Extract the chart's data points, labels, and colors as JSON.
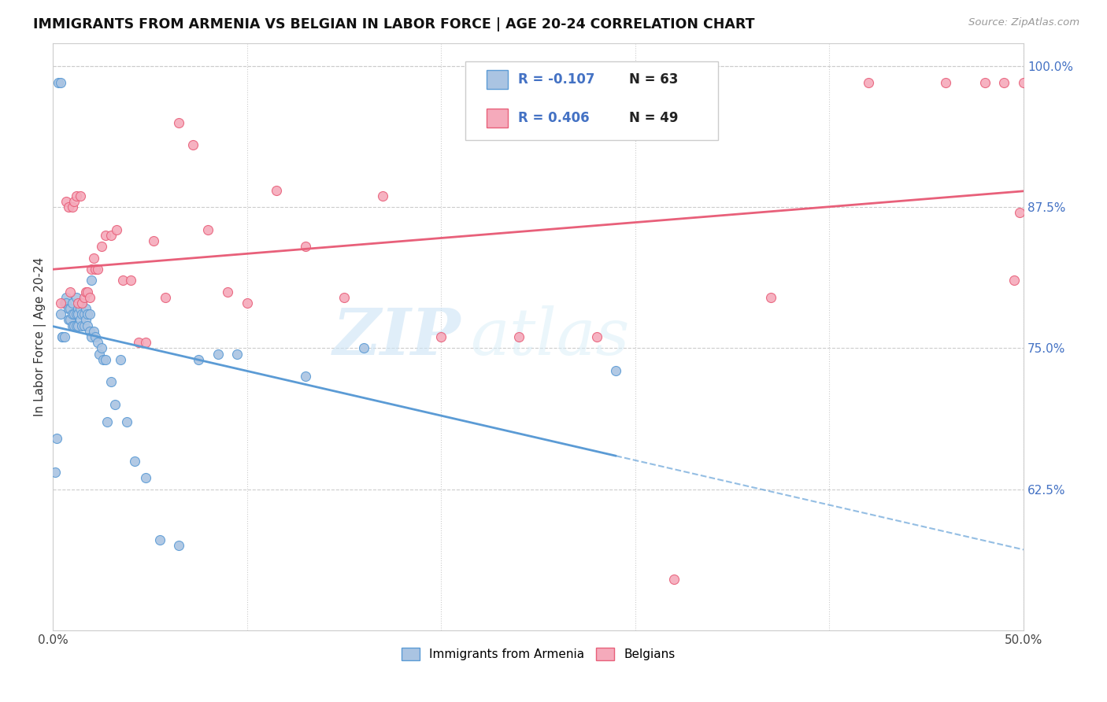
{
  "title": "IMMIGRANTS FROM ARMENIA VS BELGIAN IN LABOR FORCE | AGE 20-24 CORRELATION CHART",
  "source": "Source: ZipAtlas.com",
  "ylabel": "In Labor Force | Age 20-24",
  "xlim": [
    0.0,
    0.5
  ],
  "ylim": [
    0.5,
    1.02
  ],
  "yticks": [
    0.625,
    0.75,
    0.875,
    1.0
  ],
  "ytick_labels": [
    "62.5%",
    "75.0%",
    "87.5%",
    "100.0%"
  ],
  "xticks": [
    0.0,
    0.1,
    0.2,
    0.3,
    0.4,
    0.5
  ],
  "xtick_labels": [
    "0.0%",
    "",
    "",
    "",
    "",
    "50.0%"
  ],
  "legend_r1": "-0.107",
  "legend_n1": "63",
  "legend_r2": "0.406",
  "legend_n2": "49",
  "color_armenia": "#aac4e2",
  "color_belgian": "#f5aabb",
  "color_line_armenia": "#5b9bd5",
  "color_line_belgian": "#e8607a",
  "watermark_zip": "ZIP",
  "watermark_atlas": "atlas",
  "armenia_x": [
    0.001,
    0.002,
    0.003,
    0.004,
    0.004,
    0.005,
    0.005,
    0.006,
    0.006,
    0.007,
    0.007,
    0.008,
    0.008,
    0.009,
    0.009,
    0.01,
    0.01,
    0.01,
    0.011,
    0.011,
    0.012,
    0.012,
    0.012,
    0.013,
    0.013,
    0.013,
    0.014,
    0.014,
    0.015,
    0.015,
    0.015,
    0.016,
    0.016,
    0.017,
    0.017,
    0.018,
    0.018,
    0.019,
    0.019,
    0.02,
    0.02,
    0.021,
    0.022,
    0.023,
    0.024,
    0.025,
    0.026,
    0.027,
    0.028,
    0.03,
    0.032,
    0.035,
    0.038,
    0.042,
    0.048,
    0.055,
    0.065,
    0.075,
    0.085,
    0.095,
    0.13,
    0.16,
    0.29
  ],
  "armenia_y": [
    0.64,
    0.67,
    0.985,
    0.985,
    0.78,
    0.76,
    0.76,
    0.79,
    0.76,
    0.795,
    0.79,
    0.785,
    0.775,
    0.785,
    0.775,
    0.79,
    0.78,
    0.77,
    0.78,
    0.77,
    0.795,
    0.78,
    0.77,
    0.785,
    0.78,
    0.77,
    0.785,
    0.775,
    0.79,
    0.78,
    0.77,
    0.78,
    0.77,
    0.785,
    0.775,
    0.78,
    0.77,
    0.78,
    0.765,
    0.81,
    0.76,
    0.765,
    0.76,
    0.755,
    0.745,
    0.75,
    0.74,
    0.74,
    0.685,
    0.72,
    0.7,
    0.74,
    0.685,
    0.65,
    0.635,
    0.58,
    0.575,
    0.74,
    0.745,
    0.745,
    0.725,
    0.75,
    0.73
  ],
  "belgian_x": [
    0.004,
    0.007,
    0.008,
    0.009,
    0.01,
    0.011,
    0.012,
    0.013,
    0.014,
    0.015,
    0.016,
    0.017,
    0.018,
    0.019,
    0.02,
    0.021,
    0.022,
    0.023,
    0.025,
    0.027,
    0.03,
    0.033,
    0.036,
    0.04,
    0.044,
    0.048,
    0.052,
    0.058,
    0.065,
    0.072,
    0.08,
    0.09,
    0.1,
    0.115,
    0.13,
    0.15,
    0.17,
    0.2,
    0.24,
    0.28,
    0.32,
    0.37,
    0.42,
    0.46,
    0.48,
    0.49,
    0.495,
    0.498,
    0.5
  ],
  "belgian_y": [
    0.79,
    0.88,
    0.875,
    0.8,
    0.875,
    0.88,
    0.885,
    0.79,
    0.885,
    0.79,
    0.795,
    0.8,
    0.8,
    0.795,
    0.82,
    0.83,
    0.82,
    0.82,
    0.84,
    0.85,
    0.85,
    0.855,
    0.81,
    0.81,
    0.755,
    0.755,
    0.845,
    0.795,
    0.95,
    0.93,
    0.855,
    0.8,
    0.79,
    0.89,
    0.84,
    0.795,
    0.885,
    0.76,
    0.76,
    0.76,
    0.545,
    0.795,
    0.985,
    0.985,
    0.985,
    0.985,
    0.81,
    0.87,
    0.985
  ]
}
